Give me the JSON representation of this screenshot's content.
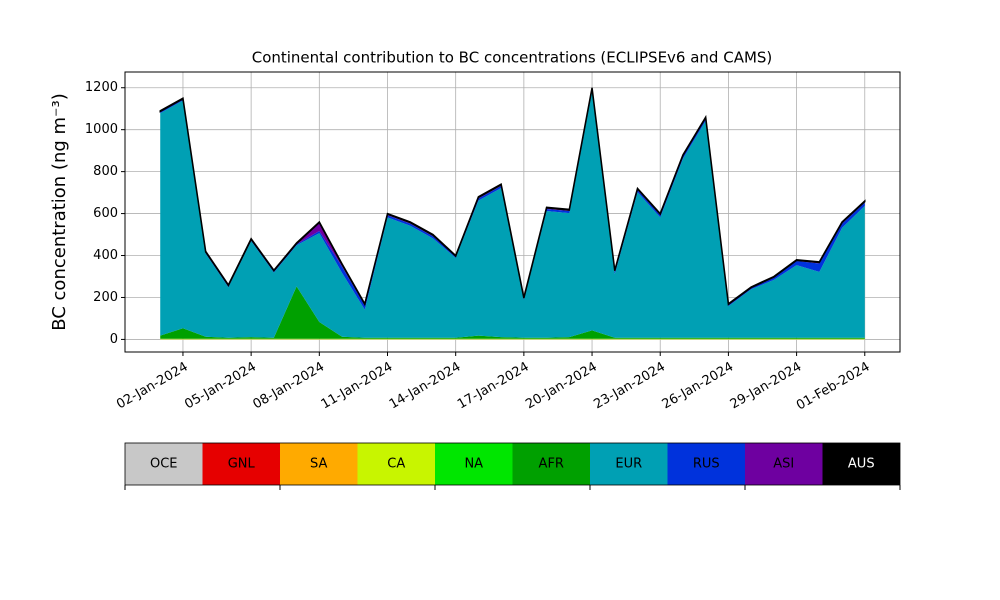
{
  "chart_data": {
    "type": "stacked_area",
    "title": "Continental contribution to BC concentrations (ECLIPSEv6 and CAMS)",
    "y_label": "BC concentration (ng m⁻³)",
    "x": [
      "01-Jan-2024",
      "02-Jan-2024",
      "03-Jan-2024",
      "04-Jan-2024",
      "05-Jan-2024",
      "06-Jan-2024",
      "07-Jan-2024",
      "08-Jan-2024",
      "09-Jan-2024",
      "10-Jan-2024",
      "11-Jan-2024",
      "12-Jan-2024",
      "13-Jan-2024",
      "14-Jan-2024",
      "15-Jan-2024",
      "16-Jan-2024",
      "17-Jan-2024",
      "18-Jan-2024",
      "19-Jan-2024",
      "20-Jan-2024",
      "21-Jan-2024",
      "22-Jan-2024",
      "23-Jan-2024",
      "24-Jan-2024",
      "25-Jan-2024",
      "26-Jan-2024",
      "27-Jan-2024",
      "28-Jan-2024",
      "29-Jan-2024",
      "30-Jan-2024",
      "31-Jan-2024",
      "01-Feb-2024"
    ],
    "xticks": [
      "02-Jan-2024",
      "05-Jan-2024",
      "08-Jan-2024",
      "11-Jan-2024",
      "14-Jan-2024",
      "17-Jan-2024",
      "20-Jan-2024",
      "23-Jan-2024",
      "26-Jan-2024",
      "29-Jan-2024",
      "01-Feb-2024"
    ],
    "ylim": [
      -60,
      1275
    ],
    "yticks": [
      0,
      200,
      400,
      600,
      800,
      1000,
      1200
    ],
    "grid": true,
    "series": [
      {
        "name": "OCE",
        "color": "#c8c8c8",
        "values": [
          0,
          0,
          0,
          0,
          0,
          0,
          0,
          0,
          0,
          0,
          0,
          0,
          0,
          0,
          0,
          0,
          0,
          0,
          0,
          0,
          0,
          0,
          0,
          0,
          0,
          0,
          0,
          0,
          0,
          0,
          0,
          0
        ]
      },
      {
        "name": "GNL",
        "color": "#e60000",
        "values": [
          0,
          0,
          0,
          0,
          0,
          0,
          0,
          0,
          0,
          0,
          0,
          0,
          0,
          0,
          0,
          0,
          0,
          0,
          0,
          0,
          0,
          0,
          0,
          0,
          0,
          0,
          0,
          0,
          0,
          0,
          0,
          0
        ]
      },
      {
        "name": "SA",
        "color": "#ffaa00",
        "values": [
          0,
          0,
          0,
          0,
          0,
          0,
          0,
          0,
          0,
          0,
          0,
          0,
          0,
          0,
          0,
          0,
          0,
          0,
          0,
          0,
          0,
          0,
          0,
          0,
          0,
          0,
          0,
          0,
          0,
          0,
          0,
          0
        ]
      },
      {
        "name": "CA",
        "color": "#c8f500",
        "values": [
          3,
          3,
          3,
          3,
          3,
          3,
          3,
          3,
          3,
          3,
          3,
          3,
          3,
          3,
          3,
          3,
          3,
          3,
          3,
          3,
          3,
          3,
          3,
          3,
          3,
          3,
          3,
          3,
          3,
          3,
          3,
          3
        ]
      },
      {
        "name": "NA",
        "color": "#00e600",
        "values": [
          0,
          0,
          0,
          0,
          0,
          0,
          0,
          0,
          0,
          0,
          0,
          0,
          0,
          0,
          0,
          0,
          0,
          0,
          0,
          0,
          0,
          0,
          0,
          0,
          0,
          0,
          0,
          0,
          0,
          0,
          0,
          0
        ]
      },
      {
        "name": "AFR",
        "color": "#00a000",
        "values": [
          15,
          50,
          10,
          5,
          8,
          5,
          250,
          80,
          10,
          5,
          5,
          5,
          5,
          5,
          15,
          8,
          5,
          5,
          8,
          40,
          5,
          5,
          5,
          5,
          5,
          5,
          5,
          5,
          5,
          5,
          5,
          5
        ]
      },
      {
        "name": "EUR",
        "color": "#00a0b4",
        "values": [
          1061,
          1086,
          396,
          241,
          458,
          311,
          196,
          424,
          304,
          134,
          574,
          534,
          474,
          381,
          644,
          711,
          181,
          604,
          591,
          1139,
          304,
          694,
          574,
          854,
          1034,
          151,
          231,
          276,
          346,
          314,
          524,
          629
        ]
      },
      {
        "name": "RUS",
        "color": "#0032dc",
        "values": [
          5,
          5,
          5,
          5,
          5,
          5,
          5,
          10,
          30,
          20,
          10,
          10,
          10,
          5,
          10,
          10,
          5,
          10,
          10,
          10,
          10,
          10,
          10,
          10,
          10,
          5,
          5,
          10,
          20,
          40,
          20,
          15
        ]
      },
      {
        "name": "ASI",
        "color": "#6e00a0",
        "values": [
          3,
          3,
          3,
          3,
          3,
          3,
          3,
          40,
          10,
          5,
          5,
          5,
          5,
          3,
          5,
          5,
          3,
          5,
          5,
          5,
          5,
          5,
          5,
          5,
          5,
          3,
          3,
          3,
          3,
          5,
          5,
          5
        ]
      },
      {
        "name": "AUS",
        "color": "#000000",
        "values": [
          3,
          3,
          3,
          3,
          3,
          3,
          3,
          3,
          3,
          3,
          3,
          3,
          3,
          3,
          3,
          3,
          3,
          3,
          3,
          3,
          3,
          3,
          3,
          3,
          3,
          3,
          3,
          3,
          3,
          3,
          3,
          3
        ]
      }
    ]
  }
}
